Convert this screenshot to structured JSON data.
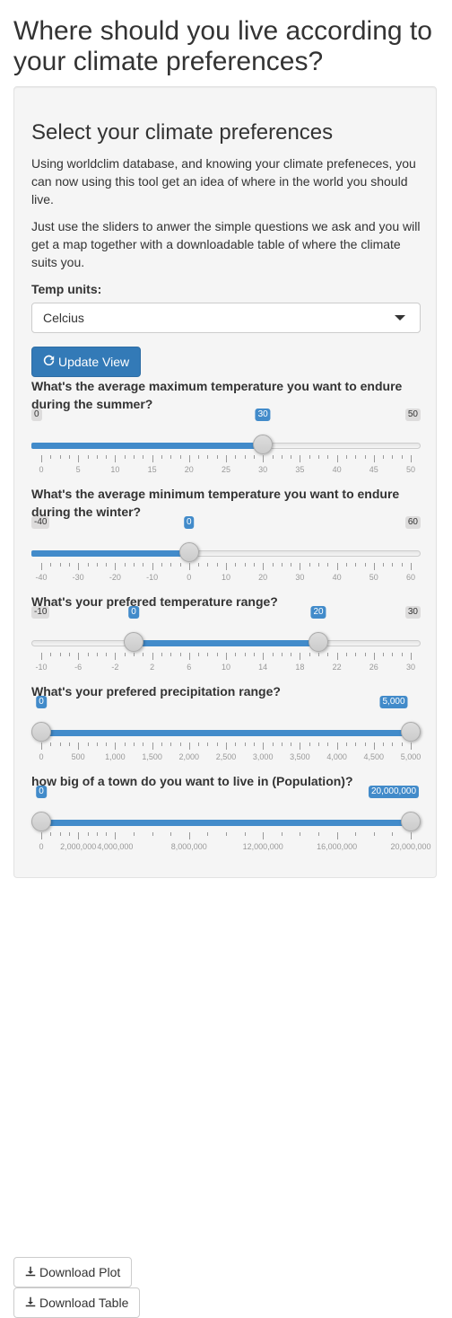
{
  "page": {
    "title": "Where should you live according to your climate preferences?"
  },
  "panel": {
    "heading": "Select your climate preferences",
    "paragraph1": "Using worldclim database, and knowing your climate prefeneces, you can now using this tool get an idea of where in the world you should live.",
    "paragraph2": "Just use the sliders to anwer the simple questions we ask and you will get a map together with a downloadable table of where the climate suits you.",
    "temp_units_label": "Temp units:",
    "temp_units_value": "Celcius",
    "update_button": "Update View"
  },
  "sliders": [
    {
      "label": "What's the average maximum temperature you want to endure during the summer?",
      "min": 0,
      "max": 50,
      "value": 30,
      "min_label": "0",
      "max_label": "50",
      "value_label": "30",
      "ticks": [
        "0",
        "5",
        "10",
        "15",
        "20",
        "25",
        "30",
        "35",
        "40",
        "45",
        "50"
      ]
    },
    {
      "label": "What's the average minimum temperature you want to endure during the winter?",
      "min": -40,
      "max": 60,
      "value": 0,
      "min_label": "-40",
      "max_label": "60",
      "value_label": "0",
      "ticks": [
        "-40",
        "-30",
        "-20",
        "-10",
        "0",
        "10",
        "20",
        "30",
        "40",
        "50",
        "60"
      ]
    },
    {
      "label": "What's your prefered temperature range?",
      "min": -10,
      "max": 30,
      "from": 0,
      "to": 20,
      "min_label": "-10",
      "max_label": "30",
      "from_label": "0",
      "to_label": "20",
      "ticks": [
        "-10",
        "-6",
        "-2",
        "2",
        "6",
        "10",
        "14",
        "18",
        "22",
        "26",
        "30"
      ]
    },
    {
      "label": "What's your prefered precipitation range?",
      "min": 0,
      "max": 5000,
      "from": 0,
      "to": 5000,
      "from_label": "0",
      "to_label": "5,000",
      "ticks": [
        "0",
        "500",
        "1,000",
        "1,500",
        "2,000",
        "2,500",
        "3,000",
        "3,500",
        "4,000",
        "4,500",
        "5,000"
      ]
    },
    {
      "label": "how big of a town do you want to live in (Population)?",
      "min": 0,
      "max": 20000000,
      "from": 0,
      "to": 20000000,
      "from_label": "0",
      "to_label": "20,000,000",
      "ticks": [
        "0",
        "2,000,000",
        "4,000,000",
        "8,000,000",
        "12,000,000",
        "16,000,000",
        "20,000,000"
      ],
      "tick_values": [
        0,
        2000000,
        4000000,
        8000000,
        12000000,
        16000000,
        20000000
      ]
    }
  ],
  "downloads": {
    "plot": "Download Plot",
    "table": "Download Table"
  },
  "colors": {
    "primary": "#337ab7",
    "slider_bar": "#428bca",
    "well_bg": "#f5f5f5"
  },
  "icons": {
    "update": "refresh-icon",
    "download": "download-icon"
  }
}
